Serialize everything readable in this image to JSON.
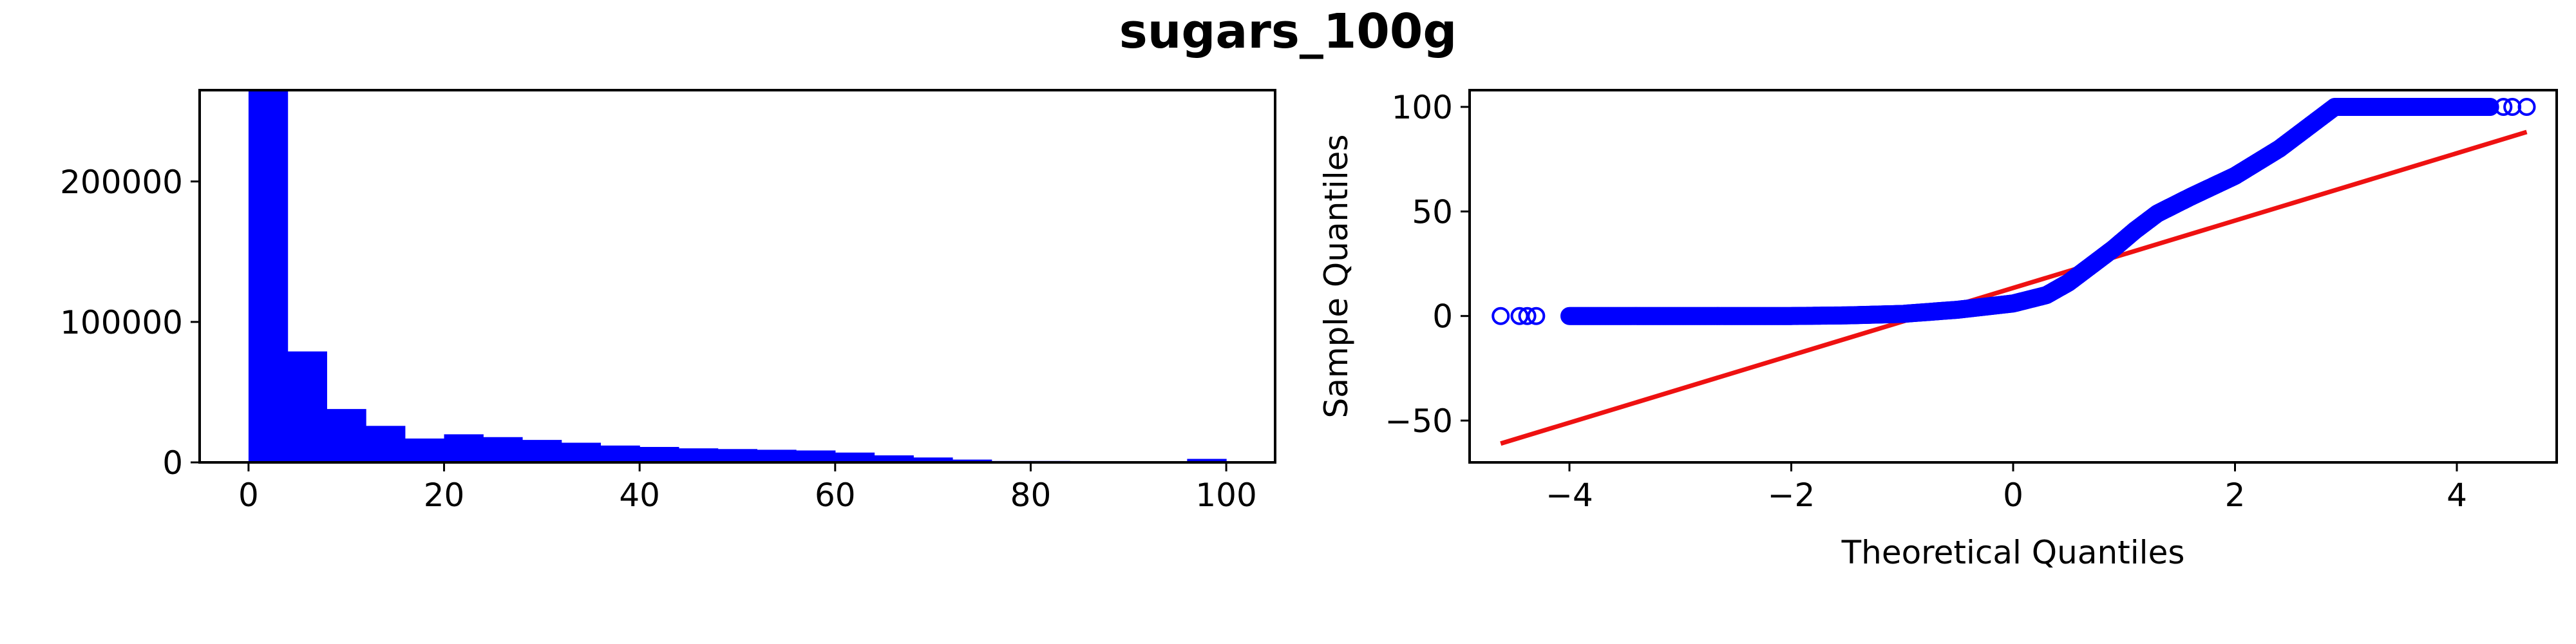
{
  "title": "sugars_100g",
  "colors": {
    "bars": "#0000ff",
    "points": "#0000ff",
    "reference_line": "#ee1111"
  },
  "chart_data": [
    {
      "type": "bar",
      "title": "",
      "xlabel": "",
      "ylabel": "",
      "xlim": [
        -5,
        105
      ],
      "ylim": [
        0,
        265000
      ],
      "xticks": [
        0,
        20,
        40,
        60,
        80,
        100
      ],
      "yticks": [
        0,
        100000,
        200000
      ],
      "bin_width": 4,
      "bin_starts": [
        0,
        4,
        8,
        12,
        16,
        20,
        24,
        28,
        32,
        36,
        40,
        44,
        48,
        52,
        56,
        60,
        64,
        68,
        72,
        76,
        80,
        84,
        88,
        92,
        96
      ],
      "values": [
        265000,
        79000,
        38000,
        26000,
        17000,
        20000,
        18000,
        16000,
        14000,
        12000,
        11000,
        10000,
        9500,
        9000,
        8500,
        7000,
        5000,
        3500,
        2000,
        1000,
        1000,
        300,
        300,
        300,
        2500
      ]
    },
    {
      "type": "scatter",
      "title": "",
      "xlabel": "Theoretical Quantiles",
      "ylabel": "Sample Quantiles",
      "xlim": [
        -4.9,
        4.9
      ],
      "ylim": [
        -70,
        108
      ],
      "xticks": [
        -4,
        -2,
        0,
        2,
        4
      ],
      "xtick_labels": [
        "−4",
        "−2",
        "0",
        "2",
        "4"
      ],
      "yticks": [
        -50,
        0,
        50,
        100
      ],
      "ytick_labels": [
        "−50",
        "0",
        "50",
        "100"
      ],
      "series": [
        {
          "x": [
            -4.62,
            -4.45,
            -4.38,
            -4.3,
            -4.0,
            -3.0,
            -2.0,
            -1.5,
            -1.0,
            -0.5,
            0,
            0.3,
            0.5,
            0.7,
            0.9,
            1.1,
            1.3,
            1.6,
            2.0,
            2.4,
            2.7,
            2.9,
            3.2,
            3.6,
            4.0,
            4.3,
            4.42,
            4.5,
            4.63
          ],
          "y": [
            0,
            0,
            0,
            0,
            0,
            0,
            0,
            0.3,
            1,
            3,
            6,
            10,
            16,
            24,
            32,
            41,
            49,
            57,
            67,
            80,
            92,
            100,
            100,
            100,
            100,
            100,
            100,
            100,
            100
          ]
        }
      ],
      "reference_line": {
        "x": [
          -4.62,
          4.63
        ],
        "y": [
          -61,
          88
        ]
      }
    }
  ]
}
